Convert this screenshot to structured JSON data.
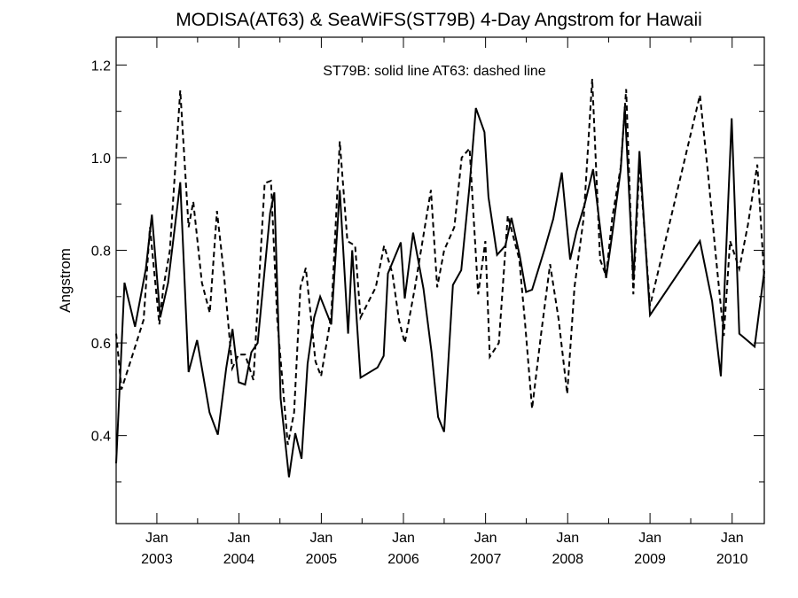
{
  "chart_data": {
    "type": "line",
    "title": "MODISA(AT63) & SeaWiFS(ST79B) 4-Day Angstrom for Hawaii",
    "xlabel": "",
    "ylabel": "Angstrom",
    "annotation": "ST79B: solid line   AT63: dashed line",
    "xlim": [
      "2002-07-04",
      "2010-05-24"
    ],
    "ylim": [
      0.21,
      1.26
    ],
    "y_ticks": [
      0.4,
      0.6,
      0.8,
      1.0,
      1.2
    ],
    "y_tick_labels": [
      "0.4",
      "0.6",
      "0.8",
      "1.0",
      "1.2"
    ],
    "x_ticks": [
      {
        "date": "2003-01-01",
        "month": "Jan",
        "year": "2003"
      },
      {
        "date": "2004-01-01",
        "month": "Jan",
        "year": "2004"
      },
      {
        "date": "2005-01-01",
        "month": "Jan",
        "year": "2005"
      },
      {
        "date": "2006-01-01",
        "month": "Jan",
        "year": "2006"
      },
      {
        "date": "2007-01-01",
        "month": "Jan",
        "year": "2007"
      },
      {
        "date": "2008-01-01",
        "month": "Jan",
        "year": "2008"
      },
      {
        "date": "2009-01-01",
        "month": "Jan",
        "year": "2009"
      },
      {
        "date": "2010-01-01",
        "month": "Jan",
        "year": "2010"
      }
    ],
    "grid": false,
    "series": [
      {
        "name": "ST79B",
        "style": "solid",
        "color": "#000000",
        "points": [
          [
            "2002-07-04",
            0.34
          ],
          [
            "2002-08-10",
            0.73
          ],
          [
            "2002-09-26",
            0.635
          ],
          [
            "2002-11-13",
            0.76
          ],
          [
            "2002-12-10",
            0.877
          ],
          [
            "2003-01-07",
            0.71
          ],
          [
            "2003-01-16",
            0.655
          ],
          [
            "2003-02-20",
            0.73
          ],
          [
            "2003-04-15",
            0.947
          ],
          [
            "2003-05-22",
            0.537
          ],
          [
            "2003-06-29",
            0.606
          ],
          [
            "2003-08-23",
            0.45
          ],
          [
            "2003-09-29",
            0.402
          ],
          [
            "2003-11-05",
            0.545
          ],
          [
            "2003-12-03",
            0.63
          ],
          [
            "2003-12-31",
            0.515
          ],
          [
            "2004-01-28",
            0.51
          ],
          [
            "2004-02-25",
            0.58
          ],
          [
            "2004-03-24",
            0.6
          ],
          [
            "2004-05-18",
            0.88
          ],
          [
            "2004-06-06",
            0.925
          ],
          [
            "2004-07-04",
            0.48
          ],
          [
            "2004-08-10",
            0.31
          ],
          [
            "2004-09-07",
            0.405
          ],
          [
            "2004-10-05",
            0.35
          ],
          [
            "2004-11-01",
            0.555
          ],
          [
            "2004-11-30",
            0.655
          ],
          [
            "2004-12-27",
            0.7
          ],
          [
            "2005-02-14",
            0.64
          ],
          [
            "2005-03-24",
            0.93
          ],
          [
            "2005-04-30",
            0.62
          ],
          [
            "2005-05-18",
            0.8
          ],
          [
            "2005-06-24",
            0.525
          ],
          [
            "2005-09-08",
            0.547
          ],
          [
            "2005-10-05",
            0.572
          ],
          [
            "2005-10-24",
            0.75
          ],
          [
            "2005-12-20",
            0.817
          ],
          [
            "2006-01-07",
            0.696
          ],
          [
            "2006-02-13",
            0.838
          ],
          [
            "2006-03-31",
            0.717
          ],
          [
            "2006-05-06",
            0.58
          ],
          [
            "2006-06-04",
            0.44
          ],
          [
            "2006-07-01",
            0.408
          ],
          [
            "2006-08-09",
            0.725
          ],
          [
            "2006-09-15",
            0.757
          ],
          [
            "2006-10-22",
            0.94
          ],
          [
            "2006-11-19",
            1.107
          ],
          [
            "2006-12-27",
            1.055
          ],
          [
            "2007-01-14",
            0.915
          ],
          [
            "2007-02-21",
            0.79
          ],
          [
            "2007-03-30",
            0.81
          ],
          [
            "2007-04-26",
            0.87
          ],
          [
            "2007-06-02",
            0.788
          ],
          [
            "2007-06-30",
            0.71
          ],
          [
            "2007-07-27",
            0.715
          ],
          [
            "2007-09-22",
            0.805
          ],
          [
            "2007-10-29",
            0.868
          ],
          [
            "2007-12-06",
            0.968
          ],
          [
            "2008-01-12",
            0.78
          ],
          [
            "2008-02-09",
            0.84
          ],
          [
            "2008-03-17",
            0.9
          ],
          [
            "2008-04-23",
            0.975
          ],
          [
            "2008-06-20",
            0.74
          ],
          [
            "2008-07-17",
            0.835
          ],
          [
            "2008-08-24",
            0.975
          ],
          [
            "2008-09-11",
            1.11
          ],
          [
            "2008-10-19",
            0.735
          ],
          [
            "2008-11-15",
            1.014
          ],
          [
            "2009-01-01",
            0.66
          ],
          [
            "2009-08-11",
            0.82
          ],
          [
            "2009-10-04",
            0.69
          ],
          [
            "2009-11-12",
            0.528
          ],
          [
            "2009-12-30",
            1.085
          ],
          [
            "2010-02-02",
            0.62
          ],
          [
            "2010-04-11",
            0.592
          ],
          [
            "2010-05-24",
            0.755
          ]
        ]
      },
      {
        "name": "AT63",
        "style": "dashed",
        "color": "#000000",
        "points": [
          [
            "2002-07-04",
            0.62
          ],
          [
            "2002-07-28",
            0.5
          ],
          [
            "2002-09-12",
            0.57
          ],
          [
            "2002-11-03",
            0.65
          ],
          [
            "2002-12-01",
            0.85
          ],
          [
            "2003-01-12",
            0.64
          ],
          [
            "2003-01-30",
            0.72
          ],
          [
            "2003-02-28",
            0.8
          ],
          [
            "2003-04-15",
            1.145
          ],
          [
            "2003-05-22",
            0.85
          ],
          [
            "2003-06-12",
            0.905
          ],
          [
            "2003-07-20",
            0.73
          ],
          [
            "2003-08-24",
            0.665
          ],
          [
            "2003-09-25",
            0.885
          ],
          [
            "2003-10-26",
            0.75
          ],
          [
            "2003-12-02",
            0.545
          ],
          [
            "2003-12-30",
            0.575
          ],
          [
            "2004-01-28",
            0.575
          ],
          [
            "2004-03-05",
            0.52
          ],
          [
            "2004-04-24",
            0.945
          ],
          [
            "2004-05-22",
            0.95
          ],
          [
            "2004-06-19",
            0.65
          ],
          [
            "2004-08-05",
            0.38
          ],
          [
            "2004-09-02",
            0.45
          ],
          [
            "2004-09-30",
            0.72
          ],
          [
            "2004-10-24",
            0.762
          ],
          [
            "2004-12-06",
            0.56
          ],
          [
            "2004-12-31",
            0.528
          ],
          [
            "2005-02-14",
            0.66
          ],
          [
            "2005-03-24",
            1.035
          ],
          [
            "2005-04-27",
            0.82
          ],
          [
            "2005-05-31",
            0.81
          ],
          [
            "2005-06-24",
            0.655
          ],
          [
            "2005-08-31",
            0.72
          ],
          [
            "2005-10-07",
            0.81
          ],
          [
            "2005-11-13",
            0.75
          ],
          [
            "2005-12-12",
            0.65
          ],
          [
            "2006-01-07",
            0.6
          ],
          [
            "2006-02-21",
            0.72
          ],
          [
            "2006-04-06",
            0.85
          ],
          [
            "2006-05-03",
            0.93
          ],
          [
            "2006-05-31",
            0.72
          ],
          [
            "2006-07-01",
            0.8
          ],
          [
            "2006-08-15",
            0.85
          ],
          [
            "2006-09-17",
            1.0
          ],
          [
            "2006-10-22",
            1.02
          ],
          [
            "2006-11-29",
            0.705
          ],
          [
            "2006-12-31",
            0.82
          ],
          [
            "2007-01-20",
            0.57
          ],
          [
            "2007-03-01",
            0.6
          ],
          [
            "2007-04-10",
            0.875
          ],
          [
            "2007-05-31",
            0.78
          ],
          [
            "2007-06-26",
            0.64
          ],
          [
            "2007-07-27",
            0.458
          ],
          [
            "2007-09-05",
            0.62
          ],
          [
            "2007-10-15",
            0.77
          ],
          [
            "2007-11-22",
            0.65
          ],
          [
            "2007-12-30",
            0.49
          ],
          [
            "2008-01-31",
            0.72
          ],
          [
            "2008-03-12",
            0.87
          ],
          [
            "2008-04-19",
            1.17
          ],
          [
            "2008-05-24",
            0.78
          ],
          [
            "2008-06-20",
            0.745
          ],
          [
            "2008-07-17",
            0.87
          ],
          [
            "2008-08-24",
            0.98
          ],
          [
            "2008-09-17",
            1.148
          ],
          [
            "2008-10-19",
            0.705
          ],
          [
            "2008-11-15",
            0.99
          ],
          [
            "2009-01-01",
            0.68
          ],
          [
            "2009-08-11",
            1.135
          ],
          [
            "2009-09-15",
            0.97
          ],
          [
            "2009-10-20",
            0.79
          ],
          [
            "2009-11-25",
            0.615
          ],
          [
            "2009-12-23",
            0.82
          ],
          [
            "2010-02-02",
            0.76
          ],
          [
            "2010-03-12",
            0.855
          ],
          [
            "2010-04-23",
            0.985
          ],
          [
            "2010-05-24",
            0.74
          ]
        ]
      }
    ]
  }
}
